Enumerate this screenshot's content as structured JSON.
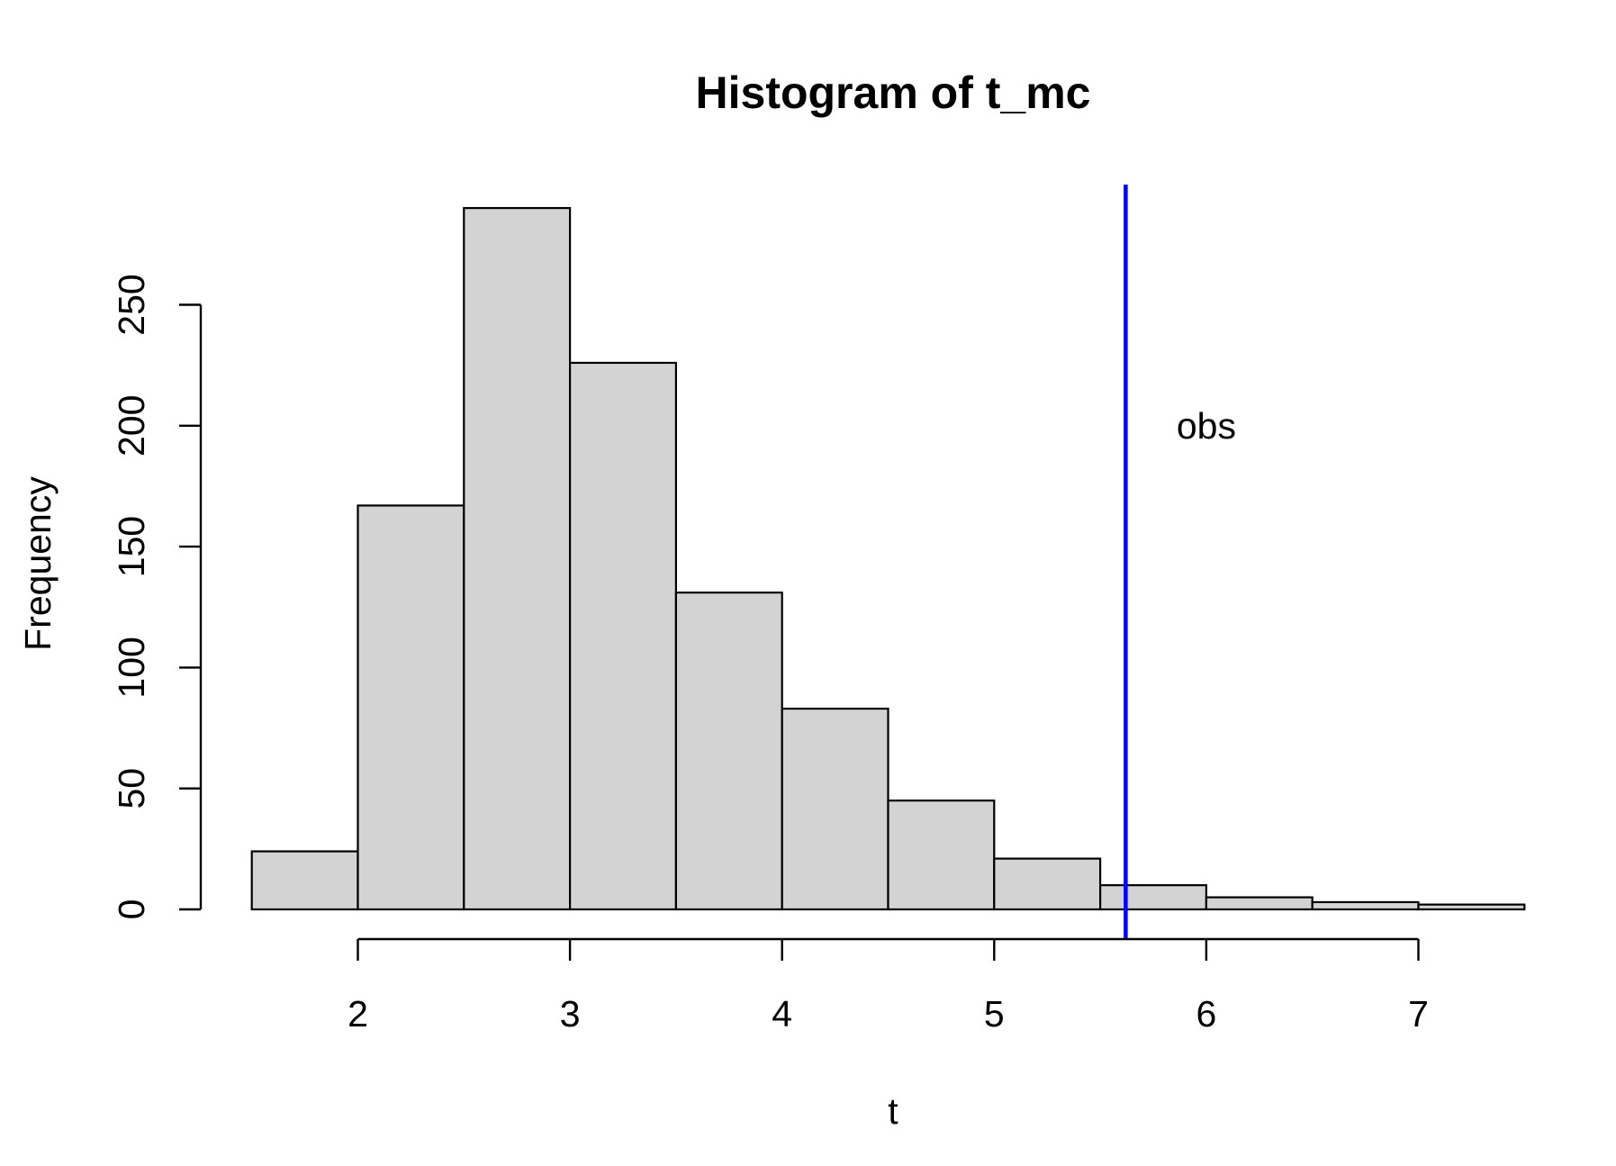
{
  "chart_data": {
    "type": "bar",
    "title": "Histogram of t_mc",
    "xlabel": "t",
    "ylabel": "Frequency",
    "bins": [
      {
        "from": 1.5,
        "to": 2.0,
        "count": 24
      },
      {
        "from": 2.0,
        "to": 2.5,
        "count": 167
      },
      {
        "from": 2.5,
        "to": 3.0,
        "count": 290
      },
      {
        "from": 3.0,
        "to": 3.5,
        "count": 226
      },
      {
        "from": 3.5,
        "to": 4.0,
        "count": 131
      },
      {
        "from": 4.0,
        "to": 4.5,
        "count": 83
      },
      {
        "from": 4.5,
        "to": 5.0,
        "count": 45
      },
      {
        "from": 5.0,
        "to": 5.5,
        "count": 21
      },
      {
        "from": 5.5,
        "to": 6.0,
        "count": 10
      },
      {
        "from": 6.0,
        "to": 6.5,
        "count": 5
      },
      {
        "from": 6.5,
        "to": 7.0,
        "count": 3
      },
      {
        "from": 7.0,
        "to": 7.5,
        "count": 2
      }
    ],
    "x_ticks": [
      2,
      3,
      4,
      5,
      6,
      7
    ],
    "y_ticks": [
      0,
      50,
      100,
      150,
      200,
      250
    ],
    "bar_color": "#d3d3d3",
    "reference_line": {
      "x": 5.62,
      "color": "#0000ff"
    },
    "annotation": {
      "text": "obs",
      "x": 6.0,
      "y": 200
    }
  }
}
